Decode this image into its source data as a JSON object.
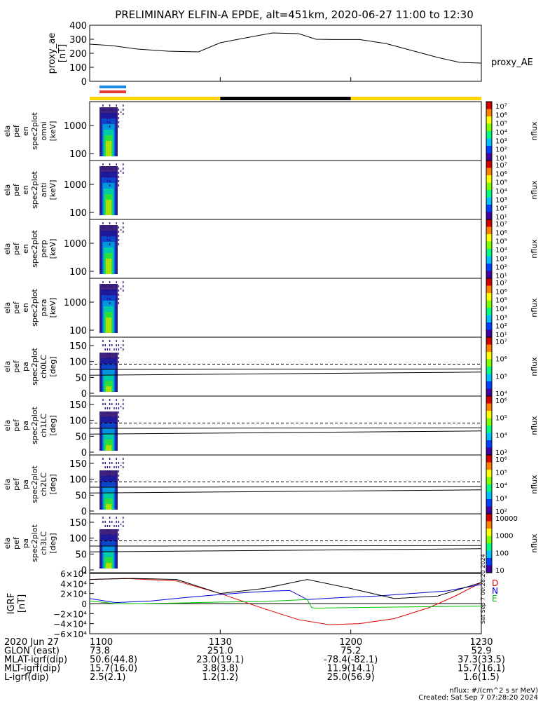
{
  "title": "PRELIMINARY ELFIN-A EPDE, alt=451km, 2020-06-27 11:00 to 12:30",
  "chart_data": [
    {
      "id": "proxy_ae",
      "type": "line",
      "ylabel": [
        "proxy_ae",
        "[nT]"
      ],
      "ylim": [
        0,
        400
      ],
      "yticks": [
        "400",
        "300",
        "200",
        "100",
        "0"
      ],
      "yticks_values": [
        400,
        300,
        200,
        100,
        0
      ],
      "legend": "proxy_AE",
      "series": [
        {
          "name": "proxy_AE",
          "x_min": [
            0,
            5,
            11,
            18,
            25,
            30,
            35,
            42,
            48,
            52,
            56,
            62,
            68,
            74,
            80,
            85,
            90
          ],
          "values": [
            265,
            255,
            230,
            215,
            210,
            275,
            305,
            345,
            340,
            300,
            298,
            298,
            270,
            220,
            170,
            135,
            130
          ]
        }
      ]
    },
    {
      "id": "orbit_bars",
      "type": "bar",
      "segments": [
        {
          "from_min": 0,
          "to_min": 30,
          "color": "#ffd400"
        },
        {
          "from_min": 30,
          "to_min": 60,
          "color": "#000000"
        },
        {
          "from_min": 60,
          "to_min": 90,
          "color": "#ffd400"
        }
      ],
      "science_zone_markers": [
        {
          "from_min": 0,
          "to_min": 3,
          "color": "#1e88e5"
        },
        {
          "from_min": 0,
          "to_min": 3,
          "color": "#e53935"
        }
      ]
    },
    {
      "id": "en_omni",
      "type": "heatmap",
      "ylabel": [
        "ela",
        "pef",
        "en",
        "spec2plot",
        "omni",
        "[keV]"
      ],
      "yticks": [
        "1000",
        "100"
      ],
      "scale": "log",
      "colorbar": {
        "label": "nflux",
        "ticks": [
          "10⁷",
          "10⁶",
          "10⁵",
          "10⁴",
          "10³",
          "10²",
          "10¹"
        ]
      }
    },
    {
      "id": "en_anti",
      "type": "heatmap",
      "ylabel": [
        "ela",
        "pef",
        "en",
        "spec2plot",
        "anti",
        "[keV]"
      ],
      "yticks": [
        "1000",
        "100"
      ],
      "scale": "log",
      "colorbar": {
        "label": "nflux",
        "ticks": [
          "10⁷",
          "10⁶",
          "10⁵",
          "10⁴",
          "10³",
          "10²",
          "10¹"
        ]
      }
    },
    {
      "id": "en_perp",
      "type": "heatmap",
      "ylabel": [
        "ela",
        "pef",
        "en",
        "spec2plot",
        "perp",
        "[keV]"
      ],
      "yticks": [
        "1000",
        "100"
      ],
      "scale": "log",
      "colorbar": {
        "label": "nflux",
        "ticks": [
          "10⁷",
          "10⁶",
          "10⁵",
          "10⁴",
          "10³",
          "10²",
          "10¹"
        ]
      }
    },
    {
      "id": "en_para",
      "type": "heatmap",
      "ylabel": [
        "ela",
        "pef",
        "en",
        "spec2plot",
        "para",
        "[keV]"
      ],
      "yticks": [
        "1000",
        "100"
      ],
      "scale": "log",
      "colorbar": {
        "label": "nflux",
        "ticks": [
          "10⁷",
          "10⁶",
          "10⁵",
          "10⁴",
          "10³",
          "10²",
          "10¹"
        ]
      }
    },
    {
      "id": "pa_ch0",
      "type": "heatmap",
      "ylabel": [
        "ela",
        "pef",
        "pa",
        "spec2plot",
        "ch0LC",
        "[deg]"
      ],
      "yticks": [
        "150",
        "100",
        "50",
        "0"
      ],
      "ylim": [
        0,
        180
      ],
      "scale": "linear",
      "colorbar": {
        "label": "nflux",
        "ticks": [
          "10⁷",
          "10⁶",
          "10⁵",
          "10⁴"
        ]
      }
    },
    {
      "id": "pa_ch1",
      "type": "heatmap",
      "ylabel": [
        "ela",
        "pef",
        "pa",
        "spec2plot",
        "ch1LC",
        "[deg]"
      ],
      "yticks": [
        "150",
        "100",
        "50",
        "0"
      ],
      "ylim": [
        0,
        180
      ],
      "scale": "linear",
      "colorbar": {
        "label": "nflux",
        "ticks": [
          "10⁶",
          "10⁵",
          "10⁴",
          "10³"
        ]
      }
    },
    {
      "id": "pa_ch2",
      "type": "heatmap",
      "ylabel": [
        "ela",
        "pef",
        "pa",
        "spec2plot",
        "ch2LC",
        "[deg]"
      ],
      "yticks": [
        "150",
        "100",
        "50",
        "0"
      ],
      "ylim": [
        0,
        180
      ],
      "scale": "linear",
      "colorbar": {
        "label": "nflux",
        "ticks": [
          "10⁶",
          "10⁵",
          "10⁴",
          "10³",
          "10²"
        ]
      }
    },
    {
      "id": "pa_ch3",
      "type": "heatmap",
      "ylabel": [
        "ela",
        "pef",
        "pa",
        "spec2plot",
        "ch3LC",
        "[deg]"
      ],
      "yticks": [
        "150",
        "100",
        "50",
        "0"
      ],
      "ylim": [
        0,
        180
      ],
      "scale": "linear",
      "colorbar": {
        "label": "nflux",
        "ticks": [
          "10000",
          "1000",
          "100",
          "10"
        ]
      }
    },
    {
      "id": "igrf",
      "type": "line",
      "ylabel": [
        "IGRF",
        "[nT]"
      ],
      "ylim": [
        -60000,
        60000
      ],
      "yticks": [
        "6×10⁴",
        "4×10⁴",
        "2×10⁴",
        "0",
        "−2×10⁴",
        "−4×10⁴",
        "−6×10⁴"
      ],
      "yticks_values": [
        60000,
        40000,
        20000,
        0,
        -20000,
        -40000,
        -60000
      ],
      "legend": [
        "D",
        "N",
        "E"
      ],
      "series": [
        {
          "name": "D",
          "color": "#e00000",
          "x_min": [
            0,
            8,
            20,
            30,
            40,
            48,
            55,
            62,
            70,
            78,
            84,
            90
          ],
          "values": [
            48000,
            50000,
            45000,
            20000,
            -10000,
            -32000,
            -42000,
            -40000,
            -30000,
            -8000,
            15000,
            42000
          ]
        },
        {
          "name": "N",
          "color": "#0000e0",
          "x_min": [
            0,
            6,
            14,
            22,
            30,
            36,
            42,
            46,
            50,
            58,
            66,
            74,
            82,
            90
          ],
          "values": [
            10000,
            2000,
            5000,
            12000,
            18000,
            22000,
            25000,
            26000,
            8000,
            12000,
            15000,
            20000,
            25000,
            38000
          ]
        },
        {
          "name": "E",
          "color": "#00c000",
          "x_min": [
            0,
            6,
            12,
            20,
            30,
            40,
            50,
            51,
            52,
            60,
            70,
            80,
            90
          ],
          "values": [
            5000,
            0,
            0,
            1000,
            3000,
            4000,
            8000,
            -8000,
            -9000,
            -8000,
            -7000,
            -6000,
            -5000
          ]
        },
        {
          "name": "",
          "color": "#000000",
          "x_min": [
            0,
            10,
            20,
            30,
            40,
            50,
            60,
            70,
            80,
            90
          ],
          "values": [
            48000,
            50000,
            48000,
            20000,
            30000,
            48000,
            30000,
            10000,
            15000,
            42000
          ]
        }
      ]
    }
  ],
  "x_axis": {
    "tick_labels": [
      "1100",
      "1130",
      "1200",
      "1230"
    ],
    "tick_minutes": [
      0,
      30,
      60,
      90
    ]
  },
  "footer_rows": [
    {
      "label": "2020 Jun 27",
      "values": [
        "1100",
        "1130",
        "1200",
        "1230"
      ]
    },
    {
      "label": "GLON (east)",
      "values": [
        "73.8",
        "251.0",
        "75.2",
        "52.9"
      ]
    },
    {
      "label": "MLAT-igrf(dip)",
      "values": [
        "50.6(44.8)",
        "23.0(19.1)",
        "-78.4(-82.1)",
        "37.3(33.5)"
      ]
    },
    {
      "label": "MLT-igrf(dip)",
      "values": [
        "15.7(16.0)",
        "3.8(3.8)",
        "11.9(14.1)",
        "15.7(16.1)"
      ]
    },
    {
      "label": "L-igrf(dip)",
      "values": [
        "2.5(2.1)",
        "1.2(1.2)",
        "25.0(56.9)",
        "1.6(1.5)"
      ]
    }
  ],
  "footer_note": [
    "nflux: #/(cm^2 s sr MeV)",
    "Created: Sat Sep  7 07:28:20 2024"
  ],
  "side_note": "Sat Sep  7 00:28:20 2024"
}
